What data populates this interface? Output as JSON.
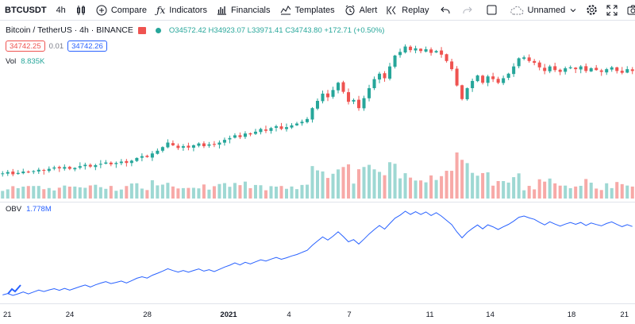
{
  "toolbar": {
    "symbol": "BTCUSDT",
    "interval": "4h",
    "compare": "Compare",
    "indicators": "Indicators",
    "financials": "Financials",
    "templates": "Templates",
    "alert": "Alert",
    "replay": "Replay",
    "layout_name": "Unnamed",
    "icons": [
      "bar-style-icon",
      "compare-plus-icon",
      "indicators-fx-icon",
      "financials-icon",
      "templates-icon",
      "alert-clock-icon",
      "replay-icon",
      "undo-icon",
      "redo-icon",
      "select-box-icon",
      "cloud-icon",
      "settings-gear-icon",
      "fullscreen-icon",
      "snapshot-camera-icon"
    ]
  },
  "legend": {
    "title": "Bitcoin / TetherUS · 4h · BINANCE",
    "open_key": "O",
    "open": "34572.42",
    "high_key": "H",
    "high": "34923.07",
    "low_key": "L",
    "low": "33971.41",
    "close_key": "C",
    "close": "34743.80",
    "change": "+172.71 (+0.50%)",
    "sell_price": "34742.25",
    "spread": "0.01",
    "buy_price": "34742.26"
  },
  "volume": {
    "label": "Vol",
    "value": "8.835K"
  },
  "obv": {
    "label": "OBV",
    "value": "1.778M"
  },
  "colors": {
    "up": "#26a69a",
    "down": "#ef5350",
    "vol_up": "#9ed8d3",
    "vol_down": "#f7a9a7",
    "obv": "#2962ff"
  },
  "chart_data": {
    "type": "candlestick",
    "x_ticks": [
      {
        "label": "21",
        "bold": false,
        "pos": 0.005
      },
      {
        "label": "24",
        "bold": false,
        "pos": 0.11
      },
      {
        "label": "28",
        "bold": false,
        "pos": 0.232
      },
      {
        "label": "2021",
        "bold": true,
        "pos": 0.36
      },
      {
        "label": "4",
        "bold": false,
        "pos": 0.455
      },
      {
        "label": "7",
        "bold": false,
        "pos": 0.55
      },
      {
        "label": "11",
        "bold": false,
        "pos": 0.677
      },
      {
        "label": "14",
        "bold": false,
        "pos": 0.772
      },
      {
        "label": "18",
        "bold": false,
        "pos": 0.9
      },
      {
        "label": "21",
        "bold": false,
        "pos": 0.993
      }
    ],
    "price_ylim": [
      21500,
      37800
    ],
    "closes": [
      23400,
      23550,
      23300,
      23450,
      23600,
      23500,
      23650,
      23800,
      23700,
      23900,
      24050,
      23950,
      24100,
      23900,
      24000,
      24200,
      24350,
      24150,
      24300,
      24450,
      24600,
      24400,
      24550,
      24700,
      24550,
      24800,
      25100,
      25300,
      25200,
      25600,
      25900,
      26300,
      26800,
      26500,
      26200,
      26400,
      26250,
      26500,
      26700,
      26400,
      26600,
      26550,
      26800,
      27100,
      27300,
      27600,
      27400,
      27800,
      27700,
      28000,
      28300,
      28100,
      28400,
      28600,
      28300,
      28500,
      28700,
      28900,
      29100,
      29400,
      30600,
      31400,
      32200,
      31800,
      32600,
      33400,
      32400,
      31300,
      31500,
      30600,
      31700,
      32800,
      33800,
      34400,
      33900,
      35200,
      36400,
      36800,
      37400,
      37000,
      37200,
      36900,
      37100,
      36700,
      36900,
      36500,
      35800,
      34900,
      33100,
      31600,
      32800,
      33600,
      34200,
      33400,
      34100,
      33800,
      33400,
      33900,
      34400,
      35200,
      36100,
      36200,
      35800,
      35600,
      35100,
      34700,
      35200,
      34800,
      34600,
      35000,
      35100,
      34900,
      35200,
      34700,
      35000,
      34800,
      34600,
      34900,
      35100,
      34700,
      34500,
      34900,
      34700
    ]
  }
}
